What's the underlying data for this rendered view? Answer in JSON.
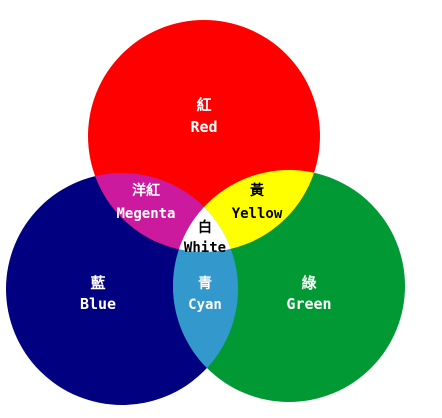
{
  "diagram": {
    "regions": {
      "red": {
        "kanji": "紅",
        "name": "Red"
      },
      "blue": {
        "kanji": "藍",
        "name": "Blue"
      },
      "green": {
        "kanji": "綠",
        "name": "Green"
      },
      "magenta": {
        "kanji": "洋紅",
        "name": "Megenta"
      },
      "yellow": {
        "kanji": "黃",
        "name": "Yellow"
      },
      "cyan": {
        "kanji": "青",
        "name": "Cyan"
      },
      "white": {
        "kanji": "白",
        "name": "White"
      }
    },
    "colors": {
      "red": "#ff0000",
      "blue": "#000080",
      "green": "#009933",
      "magenta": "#cc1a9e",
      "yellow": "#ffff00",
      "cyan": "#3399cc",
      "white": "#ffffff",
      "label_light": "#ffffff",
      "label_dark": "#000000"
    }
  }
}
